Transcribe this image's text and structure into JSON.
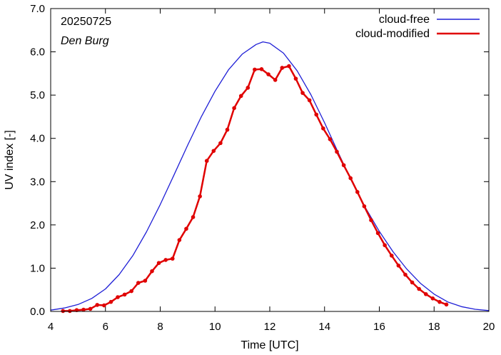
{
  "chart_data": {
    "type": "line",
    "xlabel": "Time  [UTC]",
    "ylabel": "UV index  [-]",
    "xlim": [
      4,
      20
    ],
    "ylim": [
      0,
      7
    ],
    "x_ticks": [
      "4",
      "6",
      "8",
      "10",
      "12",
      "14",
      "16",
      "18",
      "20"
    ],
    "y_ticks": [
      "0.0",
      "1.0",
      "2.0",
      "3.0",
      "4.0",
      "5.0",
      "6.0",
      "7.0"
    ],
    "annotations": [
      "20250725",
      "Den Burg"
    ],
    "grid": false,
    "legend_position": "top-right",
    "series": [
      {
        "name": "cloud-free",
        "color": "#1f1fd6",
        "style": "line",
        "x": [
          4.0,
          4.5,
          5.0,
          5.5,
          6.0,
          6.5,
          7.0,
          7.5,
          8.0,
          8.5,
          9.0,
          9.5,
          10.0,
          10.5,
          11.0,
          11.5,
          11.75,
          12.0,
          12.5,
          13.0,
          13.5,
          14.0,
          14.5,
          15.0,
          15.5,
          16.0,
          16.5,
          17.0,
          17.5,
          18.0,
          18.5,
          19.0,
          19.5,
          20.0
        ],
        "y": [
          0.03,
          0.08,
          0.16,
          0.3,
          0.52,
          0.85,
          1.29,
          1.84,
          2.47,
          3.15,
          3.84,
          4.5,
          5.09,
          5.59,
          5.95,
          6.17,
          6.23,
          6.2,
          5.97,
          5.56,
          5.01,
          4.36,
          3.67,
          3.0,
          2.39,
          1.85,
          1.38,
          0.98,
          0.65,
          0.4,
          0.22,
          0.11,
          0.05,
          0.02
        ]
      },
      {
        "name": "cloud-modified",
        "color": "#e00000",
        "style": "line-points",
        "x": [
          4.45,
          4.7,
          4.95,
          5.2,
          5.45,
          5.7,
          5.95,
          6.2,
          6.45,
          6.7,
          6.95,
          7.2,
          7.45,
          7.7,
          7.95,
          8.2,
          8.45,
          8.7,
          8.95,
          9.2,
          9.45,
          9.7,
          9.95,
          10.2,
          10.45,
          10.7,
          10.95,
          11.2,
          11.45,
          11.7,
          11.95,
          12.2,
          12.45,
          12.7,
          12.95,
          13.2,
          13.45,
          13.7,
          13.95,
          14.2,
          14.45,
          14.7,
          14.95,
          15.2,
          15.45,
          15.7,
          15.95,
          16.2,
          16.45,
          16.7,
          16.95,
          17.2,
          17.45,
          17.7,
          17.95,
          18.2,
          18.45
        ],
        "y": [
          0.01,
          0.01,
          0.03,
          0.04,
          0.06,
          0.15,
          0.14,
          0.22,
          0.33,
          0.39,
          0.47,
          0.66,
          0.71,
          0.93,
          1.12,
          1.19,
          1.22,
          1.65,
          1.91,
          2.18,
          2.66,
          3.48,
          3.71,
          3.89,
          4.2,
          4.7,
          4.98,
          5.17,
          5.59,
          5.6,
          5.48,
          5.35,
          5.63,
          5.67,
          5.38,
          5.05,
          4.88,
          4.55,
          4.23,
          3.98,
          3.69,
          3.38,
          3.08,
          2.76,
          2.43,
          2.11,
          1.81,
          1.53,
          1.29,
          1.06,
          0.85,
          0.67,
          0.52,
          0.4,
          0.3,
          0.22,
          0.16
        ]
      }
    ]
  }
}
